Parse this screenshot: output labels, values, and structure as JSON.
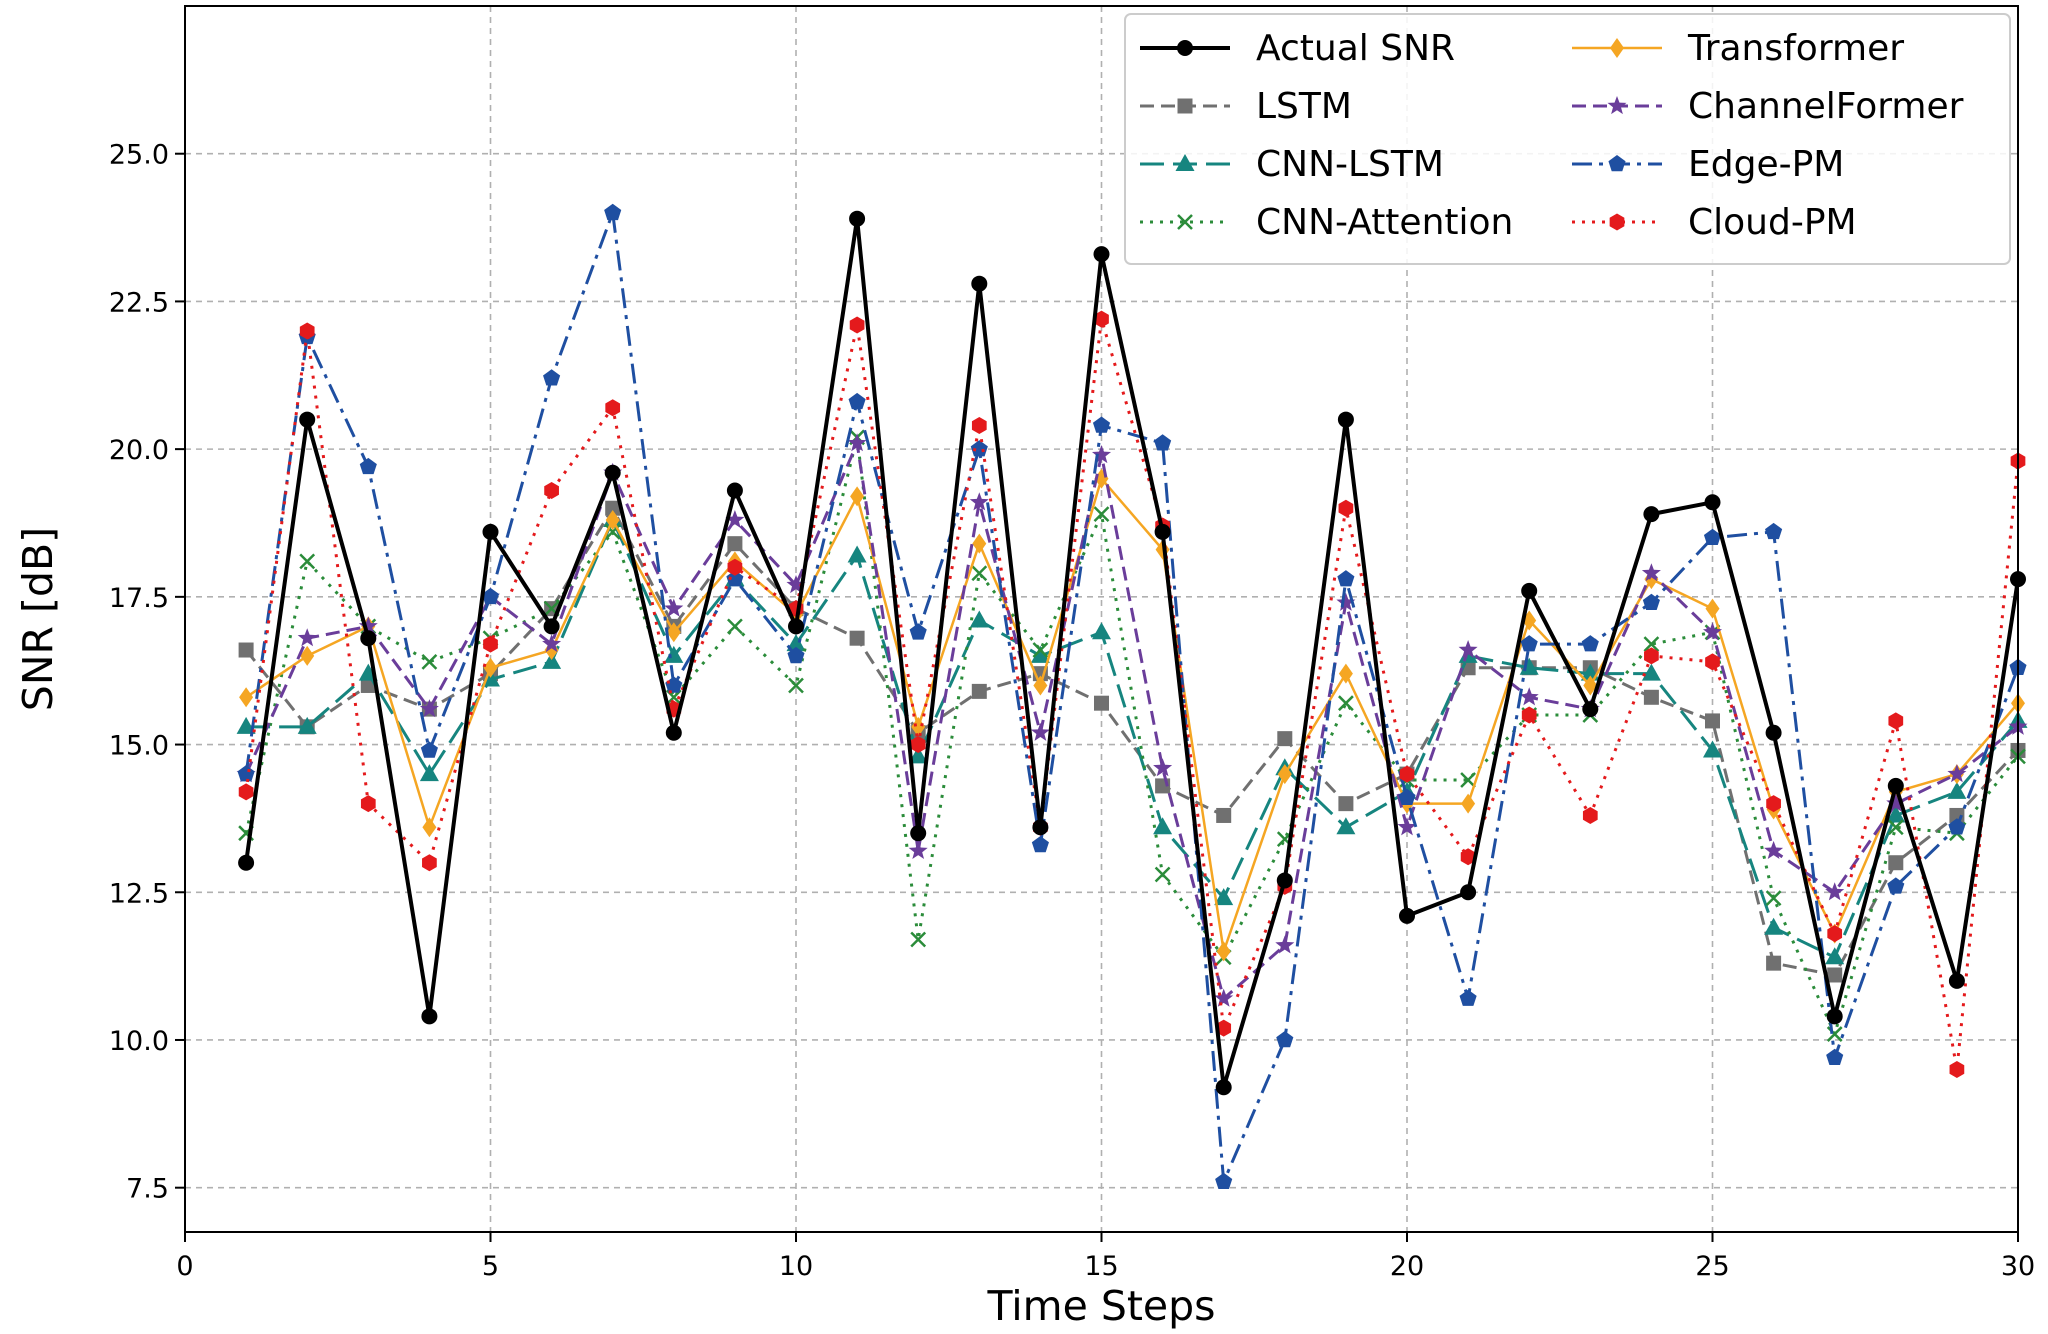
{
  "chart_data": {
    "type": "line",
    "title": "",
    "xlabel": "Time Steps",
    "ylabel": "SNR [dB]",
    "xlim": [
      0,
      30
    ],
    "ylim": [
      6.75,
      27.5
    ],
    "xticks": [
      0,
      5,
      10,
      15,
      20,
      25,
      30
    ],
    "yticks": [
      7.5,
      10.0,
      12.5,
      15.0,
      17.5,
      20.0,
      22.5,
      25.0
    ],
    "xtick_labels": [
      "0",
      "5",
      "10",
      "15",
      "20",
      "25",
      "30"
    ],
    "ytick_labels": [
      "7.5",
      "10.0",
      "12.5",
      "15.0",
      "17.5",
      "20.0",
      "22.5",
      "25.0"
    ],
    "grid": true,
    "legend_position": "upper right",
    "x": [
      1,
      2,
      3,
      4,
      5,
      6,
      7,
      8,
      9,
      10,
      11,
      12,
      13,
      14,
      15,
      16,
      17,
      18,
      19,
      20,
      21,
      22,
      23,
      24,
      25,
      26,
      27,
      28,
      29,
      30
    ],
    "series": [
      {
        "name": "Actual SNR",
        "color": "#000000",
        "linestyle": "solid",
        "marker": "circle",
        "linewidth": 4,
        "values": [
          13.0,
          20.5,
          16.8,
          10.4,
          18.6,
          17.0,
          19.6,
          15.2,
          19.3,
          17.0,
          23.9,
          13.5,
          22.8,
          13.6,
          23.3,
          18.6,
          9.2,
          12.7,
          20.5,
          12.1,
          12.5,
          17.6,
          15.6,
          18.9,
          19.1,
          15.2,
          10.4,
          14.3,
          11.0,
          17.8
        ]
      },
      {
        "name": "LSTM",
        "color": "#707070",
        "linestyle": "dash",
        "marker": "square",
        "linewidth": 3,
        "values": [
          16.6,
          15.3,
          16.0,
          15.6,
          16.2,
          17.3,
          19.0,
          17.0,
          18.4,
          17.3,
          16.8,
          15.2,
          15.9,
          16.2,
          15.7,
          14.3,
          13.8,
          15.1,
          14.0,
          14.5,
          16.3,
          16.3,
          16.3,
          15.8,
          15.4,
          11.3,
          11.1,
          13.0,
          13.8,
          14.9
        ]
      },
      {
        "name": "CNN-LSTM",
        "color": "#16857f",
        "linestyle": "longdash",
        "marker": "triangle",
        "linewidth": 3,
        "values": [
          15.3,
          15.3,
          16.2,
          14.5,
          16.1,
          16.4,
          18.8,
          16.5,
          17.8,
          16.7,
          18.2,
          14.8,
          17.1,
          16.5,
          16.9,
          13.6,
          12.4,
          14.6,
          13.6,
          14.2,
          16.5,
          16.3,
          16.2,
          16.2,
          14.9,
          11.9,
          11.4,
          13.8,
          14.2,
          15.4
        ]
      },
      {
        "name": "CNN-Attention",
        "color": "#2b8c3a",
        "linestyle": "dot",
        "marker": "x",
        "linewidth": 3,
        "values": [
          13.5,
          18.1,
          17.0,
          16.4,
          16.8,
          17.3,
          18.6,
          15.8,
          17.0,
          16.0,
          20.2,
          11.7,
          17.9,
          16.6,
          18.9,
          12.8,
          11.4,
          13.4,
          15.7,
          14.4,
          14.4,
          15.5,
          15.5,
          16.7,
          16.9,
          12.4,
          10.1,
          13.6,
          13.5,
          14.8
        ]
      },
      {
        "name": "Transformer",
        "color": "#f5a623",
        "linestyle": "solid",
        "marker": "diamond",
        "linewidth": 2.5,
        "values": [
          15.8,
          16.5,
          17.0,
          13.6,
          16.3,
          16.6,
          18.8,
          16.9,
          18.1,
          17.2,
          19.2,
          15.3,
          18.4,
          16.0,
          19.5,
          18.3,
          11.5,
          14.5,
          16.2,
          14.0,
          14.0,
          17.1,
          16.0,
          17.8,
          17.3,
          13.9,
          11.8,
          14.2,
          14.5,
          15.7
        ]
      },
      {
        "name": "ChannelFormer",
        "color": "#6a3d9a",
        "linestyle": "dash",
        "marker": "star",
        "linewidth": 3,
        "values": [
          14.5,
          16.8,
          17.0,
          15.6,
          17.5,
          16.7,
          19.6,
          17.3,
          18.8,
          17.7,
          20.1,
          13.2,
          19.1,
          15.2,
          19.9,
          14.6,
          10.7,
          11.6,
          17.4,
          13.6,
          16.6,
          15.8,
          15.6,
          17.9,
          16.9,
          13.2,
          12.5,
          14.0,
          14.5,
          15.3
        ]
      },
      {
        "name": "Edge-PM",
        "color": "#1f4fa1",
        "linestyle": "dashdot",
        "marker": "pentagon",
        "linewidth": 3,
        "values": [
          14.5,
          21.9,
          19.7,
          14.9,
          17.5,
          21.2,
          24.0,
          16.0,
          17.8,
          16.5,
          20.8,
          16.9,
          20.0,
          13.3,
          20.4,
          20.1,
          7.6,
          10.0,
          17.8,
          14.1,
          10.7,
          16.7,
          16.7,
          17.4,
          18.5,
          18.6,
          9.7,
          12.6,
          13.6,
          16.3
        ]
      },
      {
        "name": "Cloud-PM",
        "color": "#e41a1c",
        "linestyle": "dot",
        "marker": "hexagon",
        "linewidth": 3,
        "values": [
          14.2,
          22.0,
          14.0,
          13.0,
          16.7,
          19.3,
          20.7,
          15.6,
          18.0,
          17.3,
          22.1,
          15.0,
          20.4,
          13.6,
          22.2,
          18.7,
          10.2,
          12.6,
          19.0,
          14.5,
          13.1,
          15.5,
          13.8,
          16.5,
          16.4,
          14.0,
          11.8,
          15.4,
          9.5,
          19.8
        ]
      }
    ]
  }
}
